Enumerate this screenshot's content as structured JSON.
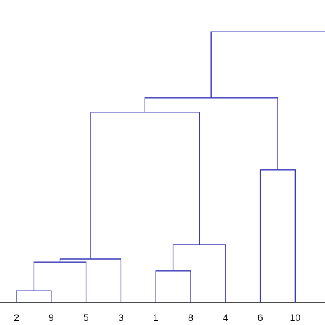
{
  "chart_data": {
    "type": "dendrogram",
    "leaf_order": [
      "2",
      "9",
      "5",
      "3",
      "1",
      "8",
      "4",
      "6",
      "10"
    ],
    "links": [
      {
        "left": "2",
        "right": "9",
        "height": 0.4
      },
      {
        "left": "{2,9}",
        "right": "5",
        "height": 1.4
      },
      {
        "left": "{2,9,5}",
        "right": "3",
        "height": 1.5
      },
      {
        "left": "1",
        "right": "8",
        "height": 1.1
      },
      {
        "left": "{1,8}",
        "right": "4",
        "height": 2.0
      },
      {
        "left": "{2,9,5,3}",
        "right": "{1,8,4}",
        "height": 6.6
      },
      {
        "left": "6",
        "right": "10",
        "height": 4.6
      },
      {
        "left": "{2,9,5,3,1,8,4}",
        "right": "{6,10}",
        "height": 7.1
      },
      {
        "left": "{2,9,5,3,1,8,4,6,10}",
        "right": "off-canvas",
        "height": 9.4
      }
    ],
    "ylim": [
      0,
      10
    ],
    "line_color": "#3a3ab8",
    "axis_color": "#4a4a4a"
  }
}
